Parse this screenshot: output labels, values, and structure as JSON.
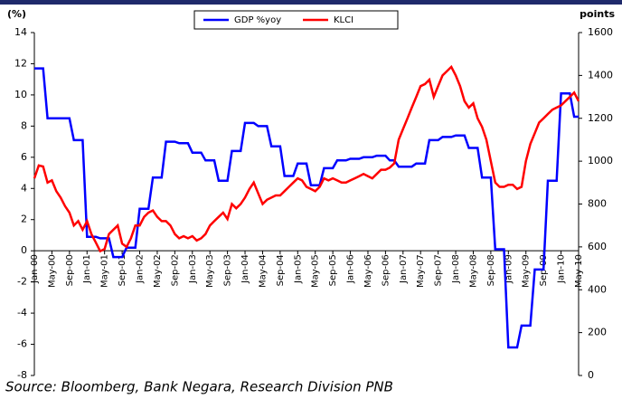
{
  "chart_data": {
    "type": "line",
    "y_label": "(%)",
    "y2_label": "points",
    "source": "Source:  Bloomberg,  Bank  Negara,  Research  Division  PNB",
    "categories": [
      "Jan-00",
      null,
      null,
      null,
      "May-00",
      null,
      null,
      null,
      "Sep-00",
      null,
      null,
      null,
      "Jan-01",
      null,
      null,
      null,
      "May-01",
      null,
      null,
      null,
      "Sep-01",
      null,
      null,
      null,
      "Jan-02",
      null,
      null,
      null,
      "May-02",
      null,
      null,
      null,
      "Sep-02",
      null,
      null,
      null,
      "Jan-03",
      null,
      null,
      null,
      "May-03",
      null,
      null,
      null,
      "Sep-03",
      null,
      null,
      null,
      "Jan-04",
      null,
      null,
      null,
      "May-04",
      null,
      null,
      null,
      "Sep-04",
      null,
      null,
      null,
      "Jan-05",
      null,
      null,
      null,
      "May-05",
      null,
      null,
      null,
      "Sep-05",
      null,
      null,
      null,
      "Jan-06",
      null,
      null,
      null,
      "May-06",
      null,
      null,
      null,
      "Sep-06",
      null,
      null,
      null,
      "Jan-07",
      null,
      null,
      null,
      "May-07",
      null,
      null,
      null,
      "Sep-07",
      null,
      null,
      null,
      "Jan-08",
      null,
      null,
      null,
      "May-08",
      null,
      null,
      null,
      "Sep-08",
      null,
      null,
      null,
      "Jan-09",
      null,
      null,
      null,
      "May-09",
      null,
      null,
      null,
      "Sep-09",
      null,
      null,
      null,
      "Jan-10",
      null,
      null,
      null,
      "May-10"
    ],
    "series": [
      {
        "name": "GDP %yoy",
        "color": "#0000ff",
        "values": [
          11.7,
          11.7,
          11.7,
          8.5,
          8.5,
          8.5,
          8.5,
          8.5,
          8.5,
          7.1,
          7.1,
          7.1,
          0.9,
          0.9,
          0.9,
          0.8,
          0.8,
          0.8,
          -0.4,
          -0.4,
          -0.4,
          0.2,
          0.2,
          0.2,
          2.7,
          2.7,
          2.7,
          4.7,
          4.7,
          4.7,
          7.0,
          7.0,
          7.0,
          6.9,
          6.9,
          6.9,
          6.3,
          6.3,
          6.3,
          5.8,
          5.8,
          5.8,
          4.5,
          4.5,
          4.5,
          6.4,
          6.4,
          6.4,
          8.2,
          8.2,
          8.2,
          8.0,
          8.0,
          8.0,
          6.7,
          6.7,
          6.7,
          4.8,
          4.8,
          4.8,
          5.6,
          5.6,
          5.6,
          4.2,
          4.2,
          4.2,
          5.3,
          5.3,
          5.3,
          5.8,
          5.8,
          5.8,
          5.9,
          5.9,
          5.9,
          6.0,
          6.0,
          6.0,
          6.1,
          6.1,
          6.1,
          5.8,
          5.8,
          5.4,
          5.4,
          5.4,
          5.4,
          5.6,
          5.6,
          5.6,
          7.1,
          7.1,
          7.1,
          7.3,
          7.3,
          7.3,
          7.4,
          7.4,
          7.4,
          6.6,
          6.6,
          6.6,
          4.7,
          4.7,
          4.7,
          0.1,
          0.1,
          0.1,
          -6.2,
          -6.2,
          -6.2,
          -4.8,
          -4.8,
          -4.8,
          -1.2,
          -1.2,
          -1.2,
          4.5,
          4.5,
          4.5,
          10.1,
          10.1,
          10.1,
          8.6,
          8.6
        ]
      },
      {
        "name": "KLCI",
        "color": "#ff0000",
        "axis": "y2",
        "values": [
          920,
          980,
          975,
          900,
          910,
          860,
          830,
          790,
          760,
          700,
          720,
          680,
          720,
          660,
          620,
          580,
          590,
          660,
          680,
          700,
          615,
          600,
          640,
          700,
          700,
          740,
          760,
          770,
          740,
          720,
          720,
          700,
          660,
          640,
          650,
          640,
          650,
          630,
          640,
          660,
          700,
          720,
          740,
          760,
          730,
          800,
          780,
          800,
          830,
          870,
          900,
          850,
          800,
          820,
          830,
          840,
          840,
          860,
          880,
          900,
          920,
          910,
          880,
          870,
          860,
          880,
          920,
          910,
          920,
          910,
          900,
          900,
          910,
          920,
          930,
          940,
          930,
          920,
          940,
          960,
          960,
          970,
          990,
          1100,
          1150,
          1200,
          1250,
          1300,
          1350,
          1360,
          1380,
          1300,
          1350,
          1400,
          1420,
          1440,
          1400,
          1350,
          1280,
          1250,
          1270,
          1200,
          1160,
          1100,
          1000,
          900,
          880,
          880,
          890,
          890,
          870,
          880,
          1000,
          1080,
          1130,
          1180,
          1200,
          1220,
          1240,
          1250,
          1260,
          1280,
          1300,
          1320,
          1280
        ]
      }
    ],
    "ylim": [
      -8,
      14
    ],
    "yticks": [
      -8,
      -6,
      -4,
      -2,
      0,
      2,
      4,
      6,
      8,
      10,
      12,
      14
    ],
    "y2lim": [
      0,
      1600
    ],
    "y2ticks": [
      0,
      200,
      400,
      600,
      800,
      1000,
      1200,
      1400,
      1600
    ]
  }
}
